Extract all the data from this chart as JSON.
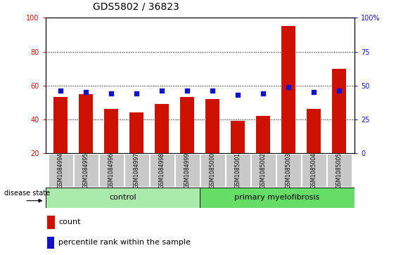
{
  "title": "GDS5802 / 36823",
  "samples": [
    "GSM1084994",
    "GSM1084995",
    "GSM1084996",
    "GSM1084997",
    "GSM1084998",
    "GSM1084999",
    "GSM1085000",
    "GSM1085001",
    "GSM1085002",
    "GSM1085003",
    "GSM1085004",
    "GSM1085005"
  ],
  "counts": [
    53,
    55,
    46,
    44,
    49,
    53,
    52,
    39,
    42,
    95,
    46,
    70
  ],
  "percentile_ranks": [
    46,
    45,
    44,
    44,
    46,
    46,
    46,
    43,
    44,
    49,
    45,
    46
  ],
  "control_count": 6,
  "group_labels": [
    "control",
    "primary myelofibrosis"
  ],
  "bar_color": "#cc1100",
  "dot_color": "#1111cc",
  "ylim_left": [
    20,
    100
  ],
  "ylim_right": [
    0,
    100
  ],
  "yticks_left": [
    20,
    40,
    60,
    80,
    100
  ],
  "yticks_right": [
    0,
    25,
    50,
    75,
    100
  ],
  "ytick_labels_right": [
    "0",
    "25",
    "50",
    "75",
    "100%"
  ],
  "tick_label_bg": "#c8c8c8",
  "control_bg": "#aaeaaa",
  "disease_bg": "#66dd66",
  "grid_color": "#000000",
  "title_fontsize": 10,
  "tick_fontsize": 7,
  "disease_state_label": "disease state",
  "legend_count_label": "count",
  "legend_pct_label": "percentile rank within the sample"
}
